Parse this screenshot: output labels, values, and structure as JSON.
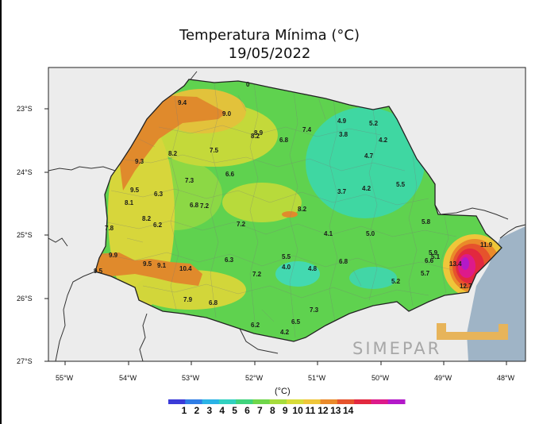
{
  "title": {
    "line1": "Temperatura Mínima (°C)",
    "line2": "19/05/2022"
  },
  "map": {
    "y_ticks": [
      "23°S",
      "24°S",
      "25°S",
      "26°S",
      "27°S"
    ],
    "x_ticks": [
      "55°W",
      "54°W",
      "53°W",
      "52°W",
      "51°W",
      "50°W",
      "49°W",
      "48°W"
    ],
    "labels": [
      {
        "text": "9.4"
      },
      {
        "text": "9.0"
      },
      {
        "text": "8.9"
      },
      {
        "text": "8.2"
      },
      {
        "text": "7.4"
      },
      {
        "text": "4.9"
      },
      {
        "text": "5.2"
      },
      {
        "text": "3.8"
      },
      {
        "text": "6.8"
      },
      {
        "text": "4.2"
      },
      {
        "text": "8.2"
      },
      {
        "text": "7.5"
      },
      {
        "text": "4.7"
      },
      {
        "text": "9.3"
      },
      {
        "text": "7.3"
      },
      {
        "text": "6.6"
      },
      {
        "text": "9.5"
      },
      {
        "text": "6.3"
      },
      {
        "text": "3.7"
      },
      {
        "text": "4.2"
      },
      {
        "text": "5.5"
      },
      {
        "text": "8.1"
      },
      {
        "text": "6.8"
      },
      {
        "text": "7.2"
      },
      {
        "text": "8.2"
      },
      {
        "text": "8.2"
      },
      {
        "text": "6.2"
      },
      {
        "text": "7.2"
      },
      {
        "text": "5.8"
      },
      {
        "text": "7.8"
      },
      {
        "text": "4.1"
      },
      {
        "text": "5.0"
      },
      {
        "text": "9.9"
      },
      {
        "text": "6.3"
      },
      {
        "text": "5.5"
      },
      {
        "text": "6.8"
      },
      {
        "text": "5.9"
      },
      {
        "text": "6.6"
      },
      {
        "text": "5.1"
      },
      {
        "text": "11.9"
      },
      {
        "text": "9.5"
      },
      {
        "text": "9.1"
      },
      {
        "text": "10.4"
      },
      {
        "text": "4.0"
      },
      {
        "text": "4.8"
      },
      {
        "text": "13.4"
      },
      {
        "text": "9.5"
      },
      {
        "text": "7.2"
      },
      {
        "text": "5.7"
      },
      {
        "text": "5.2"
      },
      {
        "text": "12.7"
      },
      {
        "text": "7.9"
      },
      {
        "text": "6.8"
      },
      {
        "text": "7.3"
      },
      {
        "text": "6.5"
      },
      {
        "text": "6.2"
      },
      {
        "text": "4.2"
      },
      {
        "text": "0"
      }
    ]
  },
  "colorbar": {
    "unit": "(°C)",
    "labels": [
      "1",
      "2",
      "3",
      "4",
      "5",
      "6",
      "7",
      "8",
      "9",
      "10",
      "11",
      "12",
      "13",
      "14"
    ],
    "colors": [
      "#3b3bd8",
      "#2f7de6",
      "#2ab3e6",
      "#31d1c0",
      "#3fd37c",
      "#6fd64a",
      "#a7dc3c",
      "#d8dc3a",
      "#efc63a",
      "#ea8a2a",
      "#e6532c",
      "#e2283f",
      "#dd1a8a",
      "#b319c9"
    ]
  },
  "logo": {
    "text": "SIMEPAR"
  },
  "colors": {
    "ocean": "#9fb4c6",
    "land_bg": "#e9e9e9",
    "green": "#5fd24f",
    "teal": "#3fd7a2",
    "yellow": "#d6d63a",
    "orange": "#e08a2c",
    "hotspot": "#e0216a"
  }
}
